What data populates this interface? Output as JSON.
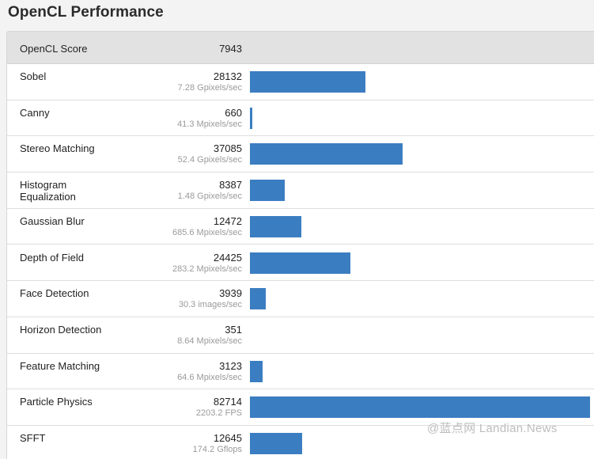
{
  "title": "OpenCL Performance",
  "header": {
    "name": "OpenCL Score",
    "score": "7943"
  },
  "colors": {
    "bar": "#3b7dc1"
  },
  "max_score": 82714,
  "rows": [
    {
      "name": "Sobel",
      "score": 28132,
      "rate": "7.28 Gpixels/sec"
    },
    {
      "name": "Canny",
      "score": 660,
      "rate": "41.3 Mpixels/sec"
    },
    {
      "name": "Stereo Matching",
      "score": 37085,
      "rate": "52.4 Gpixels/sec"
    },
    {
      "name": "Histogram Equalization",
      "score": 8387,
      "rate": "1.48 Gpixels/sec"
    },
    {
      "name": "Gaussian Blur",
      "score": 12472,
      "rate": "685.6 Mpixels/sec"
    },
    {
      "name": "Depth of Field",
      "score": 24425,
      "rate": "283.2 Mpixels/sec"
    },
    {
      "name": "Face Detection",
      "score": 3939,
      "rate": "30.3 images/sec"
    },
    {
      "name": "Horizon Detection",
      "score": 351,
      "rate": "8.64 Mpixels/sec"
    },
    {
      "name": "Feature Matching",
      "score": 3123,
      "rate": "64.6 Mpixels/sec"
    },
    {
      "name": "Particle Physics",
      "score": 82714,
      "rate": "2203.2 FPS"
    },
    {
      "name": "SFFT",
      "score": 12645,
      "rate": "174.2 Gflops"
    }
  ],
  "watermark": "@蓝点网 Landian.News"
}
